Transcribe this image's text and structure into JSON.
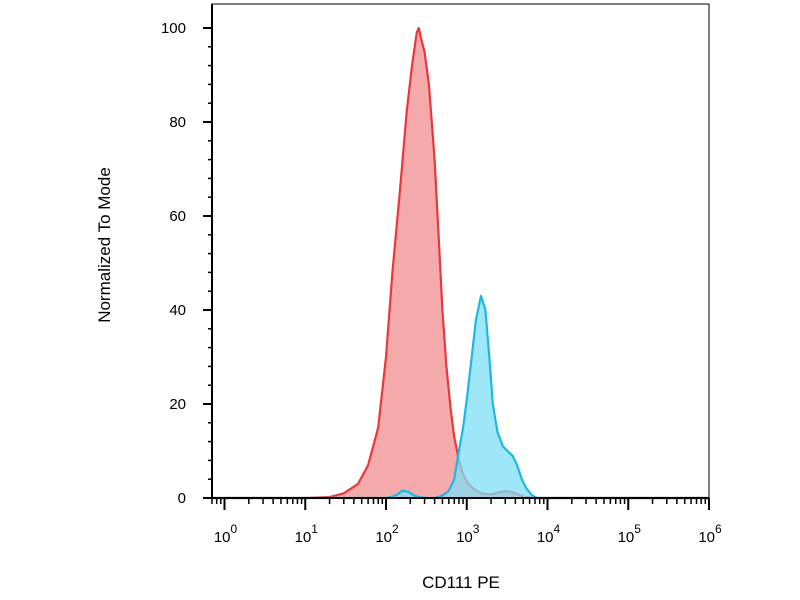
{
  "chart_data": {
    "type": "area",
    "title": "",
    "xlabel": "CD111 PE",
    "ylabel": "Normalized To Mode",
    "xscale": "log",
    "xlim": [
      0.7,
      1000000
    ],
    "ylim": [
      0,
      100
    ],
    "grid": false,
    "yticks": [
      0,
      20,
      40,
      60,
      80,
      100
    ],
    "ytick_labels": [
      "0",
      "20",
      "40",
      "60",
      "80",
      "100"
    ],
    "xticks": [
      1,
      10,
      100,
      1000,
      10000,
      100000,
      1000000
    ],
    "xtick_labels": [
      {
        "base": "10",
        "exp": "0"
      },
      {
        "base": "10",
        "exp": "1"
      },
      {
        "base": "10",
        "exp": "2"
      },
      {
        "base": "10",
        "exp": "3"
      },
      {
        "base": "10",
        "exp": "4"
      },
      {
        "base": "10",
        "exp": "5"
      },
      {
        "base": "10",
        "exp": "6"
      }
    ],
    "series": [
      {
        "fill_color": "#f4a9aa",
        "line_color": "#e8383d",
        "fill_opacity": 1,
        "x": [
          0.7,
          10,
          20,
          30,
          45,
          60,
          80,
          100,
          120,
          150,
          180,
          210,
          240,
          255,
          270,
          300,
          340,
          400,
          450,
          500,
          560,
          630,
          700,
          800,
          900,
          1000,
          1200,
          1500,
          2000,
          2500,
          3000,
          3500,
          4000,
          5000,
          6000,
          7000,
          10000,
          1000000
        ],
        "y": [
          0,
          0,
          0.2,
          1,
          3,
          7,
          15,
          30,
          48,
          66,
          82,
          92,
          99,
          100,
          98,
          95,
          88,
          72,
          55,
          40,
          28,
          19,
          13,
          8,
          5,
          3.5,
          2,
          1,
          0.8,
          1.2,
          1.5,
          1.3,
          1,
          0.3,
          0.1,
          0,
          0,
          0
        ]
      },
      {
        "fill_color": "#7edff5",
        "line_color": "#1fb7e0",
        "fill_opacity": 0.75,
        "x": [
          0.7,
          100,
          120,
          140,
          160,
          190,
          230,
          300,
          400,
          500,
          600,
          700,
          800,
          900,
          1000,
          1150,
          1300,
          1500,
          1700,
          1900,
          2100,
          2400,
          2800,
          3200,
          3700,
          4200,
          4800,
          5500,
          6500,
          7500,
          10000,
          1000000
        ],
        "y": [
          0,
          0,
          0.3,
          0.8,
          1.6,
          1.3,
          0.4,
          0,
          0,
          0.5,
          1.5,
          4,
          10,
          15,
          21,
          30,
          38,
          43,
          40,
          30,
          20,
          14,
          11,
          10,
          9,
          7,
          4,
          2,
          0.5,
          0,
          0,
          0
        ]
      }
    ]
  }
}
